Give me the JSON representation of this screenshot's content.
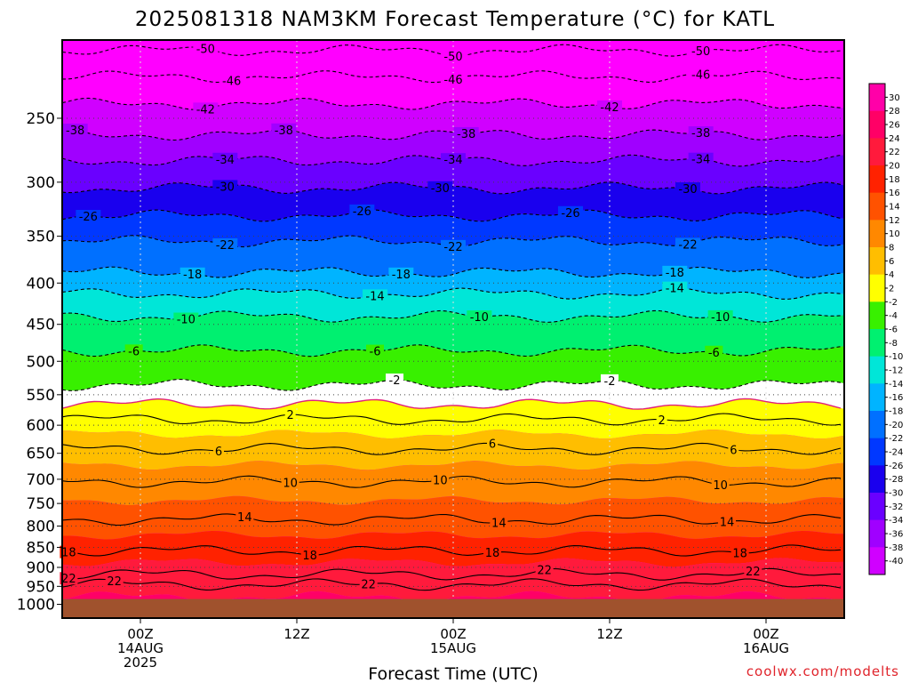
{
  "chart_data": {
    "type": "heatmap",
    "title": "2025081318 NAM3KM Forecast Temperature (°C) for KATL",
    "xlabel": "Forecast Time (UTC)",
    "ylabel": "",
    "x_ticks": [
      {
        "hour": 6,
        "lines": [
          "00Z",
          "14AUG",
          "2025"
        ]
      },
      {
        "hour": 18,
        "lines": [
          "12Z"
        ]
      },
      {
        "hour": 30,
        "lines": [
          "00Z",
          "15AUG"
        ]
      },
      {
        "hour": 42,
        "lines": [
          "12Z"
        ]
      },
      {
        "hour": 54,
        "lines": [
          "00Z",
          "16AUG"
        ]
      }
    ],
    "xlim": [
      0,
      60
    ],
    "y_scale": "log",
    "y_ticks": [
      250,
      300,
      350,
      400,
      450,
      500,
      550,
      600,
      650,
      700,
      750,
      800,
      850,
      900,
      950,
      1000
    ],
    "ylim": [
      1040,
      200
    ],
    "colorbar_ticks": [
      30,
      28,
      26,
      24,
      22,
      20,
      18,
      16,
      14,
      12,
      10,
      8,
      6,
      4,
      2,
      -2,
      -4,
      -6,
      -8,
      -10,
      -12,
      -14,
      -16,
      -18,
      -20,
      -22,
      -24,
      -26,
      -28,
      -30,
      -32,
      -34,
      -36,
      -38,
      -40
    ],
    "color_bands": [
      {
        "min": 28,
        "max": 32,
        "color": "#ff00a8"
      },
      {
        "min": 24,
        "max": 28,
        "color": "#ff0066"
      },
      {
        "min": 20,
        "max": 24,
        "color": "#ff1a3c"
      },
      {
        "min": 16,
        "max": 20,
        "color": "#ff2200"
      },
      {
        "min": 12,
        "max": 16,
        "color": "#ff5200"
      },
      {
        "min": 8,
        "max": 12,
        "color": "#ff8800"
      },
      {
        "min": 4,
        "max": 8,
        "color": "#ffbe00"
      },
      {
        "min": 0,
        "max": 4,
        "color": "#ffff00"
      },
      {
        "min": -2,
        "max": 0,
        "color": "#ffffff"
      },
      {
        "min": -6,
        "max": -2,
        "color": "#38f000"
      },
      {
        "min": -10,
        "max": -6,
        "color": "#00f070"
      },
      {
        "min": -14,
        "max": -10,
        "color": "#00e6d8"
      },
      {
        "min": -18,
        "max": -14,
        "color": "#00b4ff"
      },
      {
        "min": -22,
        "max": -18,
        "color": "#0070ff"
      },
      {
        "min": -26,
        "max": -22,
        "color": "#0038ff"
      },
      {
        "min": -30,
        "max": -26,
        "color": "#1a00ee"
      },
      {
        "min": -34,
        "max": -30,
        "color": "#6a00ff"
      },
      {
        "min": -38,
        "max": -34,
        "color": "#a000ff"
      },
      {
        "min": -42,
        "max": -38,
        "color": "#d000ff"
      },
      {
        "min": -60,
        "max": -42,
        "color": "#ff00ff"
      }
    ],
    "isotherms": [
      {
        "temp": 22,
        "pressure": 945,
        "labels": [
          {
            "hour": 4,
            "text": "22"
          },
          {
            "hour": 23.5,
            "text": "22"
          }
        ]
      },
      {
        "temp": 22,
        "pressure": 918,
        "labels": [
          {
            "hour": 0.5,
            "text": "22"
          },
          {
            "hour": 37,
            "text": "22"
          },
          {
            "hour": 53,
            "text": "22"
          }
        ]
      },
      {
        "temp": 18,
        "pressure": 858,
        "labels": [
          {
            "hour": 0.5,
            "text": "18"
          },
          {
            "hour": 19,
            "text": "18"
          },
          {
            "hour": 33,
            "text": "18"
          },
          {
            "hour": 52,
            "text": "18"
          }
        ]
      },
      {
        "temp": 14,
        "pressure": 785,
        "labels": [
          {
            "hour": 14,
            "text": "14"
          },
          {
            "hour": 33.5,
            "text": "14"
          },
          {
            "hour": 51,
            "text": "14"
          }
        ]
      },
      {
        "temp": 10,
        "pressure": 705,
        "labels": [
          {
            "hour": 17.5,
            "text": "10"
          },
          {
            "hour": 29,
            "text": "10"
          },
          {
            "hour": 50.5,
            "text": "10"
          }
        ]
      },
      {
        "temp": 6,
        "pressure": 642,
        "labels": [
          {
            "hour": 12,
            "text": "6"
          },
          {
            "hour": 33,
            "text": "6"
          },
          {
            "hour": 51.5,
            "text": "6"
          }
        ]
      },
      {
        "temp": 2,
        "pressure": 590,
        "labels": [
          {
            "hour": 17.5,
            "text": "2"
          },
          {
            "hour": 46,
            "text": "2"
          }
        ]
      },
      {
        "temp": 0,
        "pressure": 565,
        "labels": []
      },
      {
        "temp": -2,
        "pressure": 535,
        "labels": [
          {
            "hour": 25.5,
            "text": "-2"
          },
          {
            "hour": 42,
            "text": "-2"
          }
        ]
      },
      {
        "temp": -6,
        "pressure": 485,
        "labels": [
          {
            "hour": 5.5,
            "text": "-6"
          },
          {
            "hour": 24,
            "text": "-6"
          },
          {
            "hour": 50,
            "text": "-6"
          }
        ]
      },
      {
        "temp": -10,
        "pressure": 440,
        "labels": [
          {
            "hour": 9.5,
            "text": "-10"
          },
          {
            "hour": 32,
            "text": "-10"
          },
          {
            "hour": 50.5,
            "text": "-10"
          }
        ]
      },
      {
        "temp": -14,
        "pressure": 412,
        "labels": [
          {
            "hour": 24,
            "text": "-14"
          },
          {
            "hour": 47,
            "text": "-14"
          }
        ]
      },
      {
        "temp": -18,
        "pressure": 388,
        "labels": [
          {
            "hour": 10,
            "text": "-18"
          },
          {
            "hour": 26,
            "text": "-18"
          },
          {
            "hour": 47,
            "text": "-18"
          }
        ]
      },
      {
        "temp": -22,
        "pressure": 355,
        "labels": [
          {
            "hour": 12.5,
            "text": "-22"
          },
          {
            "hour": 30,
            "text": "-22"
          },
          {
            "hour": 48,
            "text": "-22"
          }
        ]
      },
      {
        "temp": -26,
        "pressure": 330,
        "labels": [
          {
            "hour": 2,
            "text": "-26"
          },
          {
            "hour": 23,
            "text": "-26"
          },
          {
            "hour": 39,
            "text": "-26"
          }
        ]
      },
      {
        "temp": -30,
        "pressure": 305,
        "labels": [
          {
            "hour": 12.5,
            "text": "-30"
          },
          {
            "hour": 29,
            "text": "-30"
          },
          {
            "hour": 48,
            "text": "-30"
          }
        ]
      },
      {
        "temp": -34,
        "pressure": 282,
        "labels": [
          {
            "hour": 12.5,
            "text": "-34"
          },
          {
            "hour": 30,
            "text": "-34"
          },
          {
            "hour": 49,
            "text": "-34"
          }
        ]
      },
      {
        "temp": -38,
        "pressure": 262,
        "labels": [
          {
            "hour": 1,
            "text": "-38"
          },
          {
            "hour": 17,
            "text": "-38"
          },
          {
            "hour": 31,
            "text": "-38"
          },
          {
            "hour": 49,
            "text": "-38"
          }
        ]
      },
      {
        "temp": -42,
        "pressure": 240,
        "labels": [
          {
            "hour": 11,
            "text": "-42"
          },
          {
            "hour": 42,
            "text": "-42"
          }
        ]
      },
      {
        "temp": -46,
        "pressure": 222,
        "labels": [
          {
            "hour": 13,
            "text": "-46"
          },
          {
            "hour": 30,
            "text": "-46"
          },
          {
            "hour": 49,
            "text": "-46"
          }
        ]
      },
      {
        "temp": -50,
        "pressure": 206,
        "labels": [
          {
            "hour": 11,
            "text": "-50"
          },
          {
            "hour": 30,
            "text": "-50"
          },
          {
            "hour": 49,
            "text": "-50"
          }
        ]
      }
    ],
    "ground_color": "#a0522d",
    "ground_top_pressure": 985,
    "grid": true,
    "legend": "colorbar-right"
  },
  "credit": "coolwx.com/modelts"
}
